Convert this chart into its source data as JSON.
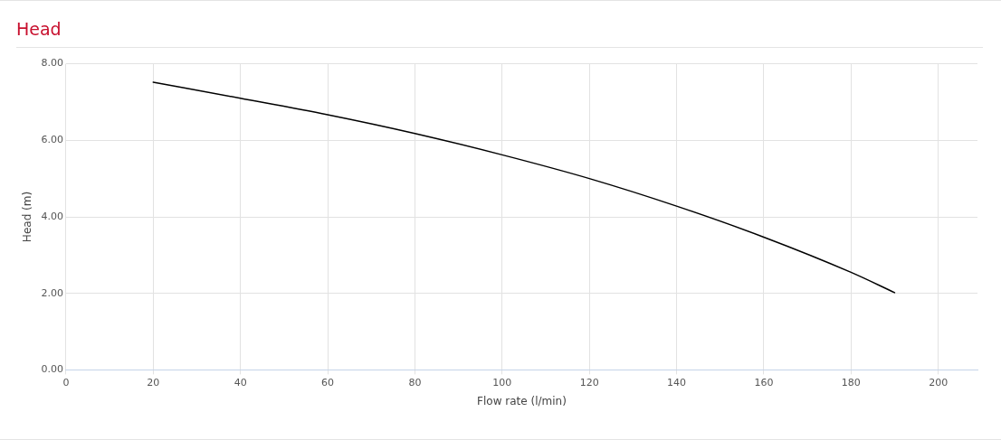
{
  "chart_data": {
    "type": "line",
    "title": "Head",
    "xlabel": "Flow rate (l/min)",
    "ylabel": "Head (m)",
    "x": [
      20,
      40,
      60,
      80,
      100,
      120,
      140,
      160,
      180,
      190
    ],
    "series": [
      {
        "color": "#000000",
        "values": [
          7.52,
          7.1,
          6.67,
          6.18,
          5.62,
          5.0,
          4.28,
          3.47,
          2.55,
          2.02
        ]
      }
    ],
    "xlim": [
      0,
      209
    ],
    "xticks": [
      0,
      20,
      40,
      60,
      80,
      100,
      120,
      140,
      160,
      180,
      200
    ],
    "ylim": [
      0,
      8
    ],
    "yticks": [
      {
        "value": 0,
        "label": "0.00"
      },
      {
        "value": 2,
        "label": "2.00"
      },
      {
        "value": 4,
        "label": "4.00"
      },
      {
        "value": 6,
        "label": "6.00"
      },
      {
        "value": 8,
        "label": "8.00"
      }
    ],
    "grid": true,
    "legend": false,
    "marker": "none",
    "line_style": "solid"
  }
}
